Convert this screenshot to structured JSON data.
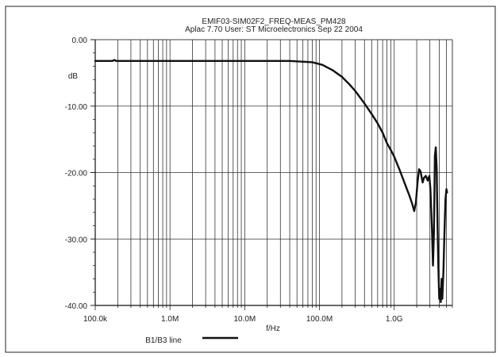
{
  "chart_data": {
    "type": "line",
    "title": "EMIF03-SIM02F2_FREQ-MEAS_PM428",
    "subtitle": "Aplac 7.70 User: ST Microelectronics  Sep 22 2004",
    "ylabel": "dB",
    "xlabel": "f/Hz",
    "x_scale": "log",
    "xlim": [
      100000,
      6000000000
    ],
    "ylim": [
      -40,
      0
    ],
    "grid": true,
    "x_ticks": [
      {
        "value": 100000,
        "label": "100.0k"
      },
      {
        "value": 1000000,
        "label": "1.0M"
      },
      {
        "value": 10000000,
        "label": "10.0M"
      },
      {
        "value": 100000000,
        "label": "100.0M"
      },
      {
        "value": 1000000000,
        "label": "1.0G"
      }
    ],
    "y_ticks": [
      {
        "value": 0,
        "label": "0.00"
      },
      {
        "value": -10,
        "label": "-10.00"
      },
      {
        "value": -20,
        "label": "-20.00"
      },
      {
        "value": -30,
        "label": "-30.00"
      },
      {
        "value": -40,
        "label": "-40.00"
      }
    ],
    "legend_position": "bottom-left",
    "series": [
      {
        "name": "B1/B3 line",
        "color": "#111111",
        "points": [
          [
            100000,
            -3.2
          ],
          [
            170000,
            -3.2
          ],
          [
            180000,
            -3.05
          ],
          [
            190000,
            -3.2
          ],
          [
            1000000,
            -3.2
          ],
          [
            10000000,
            -3.2
          ],
          [
            40000000,
            -3.2
          ],
          [
            80000000,
            -3.4
          ],
          [
            110000000,
            -3.8
          ],
          [
            150000000,
            -4.6
          ],
          [
            200000000,
            -5.6
          ],
          [
            250000000,
            -6.7
          ],
          [
            300000000,
            -7.7
          ],
          [
            400000000,
            -9.6
          ],
          [
            500000000,
            -11.2
          ],
          [
            600000000,
            -12.6
          ],
          [
            700000000,
            -14.0
          ],
          [
            800000000,
            -15.6
          ],
          [
            900000000,
            -16.6
          ],
          [
            1000000000,
            -17.6
          ],
          [
            1200000000,
            -19.8
          ],
          [
            1400000000,
            -21.8
          ],
          [
            1600000000,
            -23.5
          ],
          [
            1750000000,
            -24.8
          ],
          [
            1850000000,
            -25.8
          ],
          [
            1950000000,
            -24.5
          ],
          [
            2050000000,
            -21.5
          ],
          [
            2150000000,
            -19.5
          ],
          [
            2250000000,
            -19.8
          ],
          [
            2400000000,
            -21.5
          ],
          [
            2500000000,
            -20.8
          ],
          [
            2650000000,
            -20.5
          ],
          [
            2800000000,
            -21.2
          ],
          [
            2950000000,
            -20.5
          ],
          [
            3050000000,
            -22.5
          ],
          [
            3200000000,
            -28.5
          ],
          [
            3300000000,
            -34.0
          ],
          [
            3400000000,
            -29.0
          ],
          [
            3500000000,
            -17.5
          ],
          [
            3600000000,
            -16.2
          ],
          [
            3700000000,
            -19.5
          ],
          [
            3800000000,
            -28.0
          ],
          [
            3900000000,
            -34.5
          ],
          [
            4000000000,
            -39.0
          ],
          [
            4100000000,
            -37.5
          ],
          [
            4200000000,
            -39.5
          ],
          [
            4300000000,
            -36.0
          ],
          [
            4400000000,
            -39.0
          ],
          [
            4550000000,
            -35.0
          ],
          [
            4700000000,
            -29.0
          ],
          [
            4850000000,
            -24.0
          ],
          [
            5000000000,
            -22.5
          ],
          [
            5100000000,
            -23.0
          ]
        ]
      }
    ]
  }
}
